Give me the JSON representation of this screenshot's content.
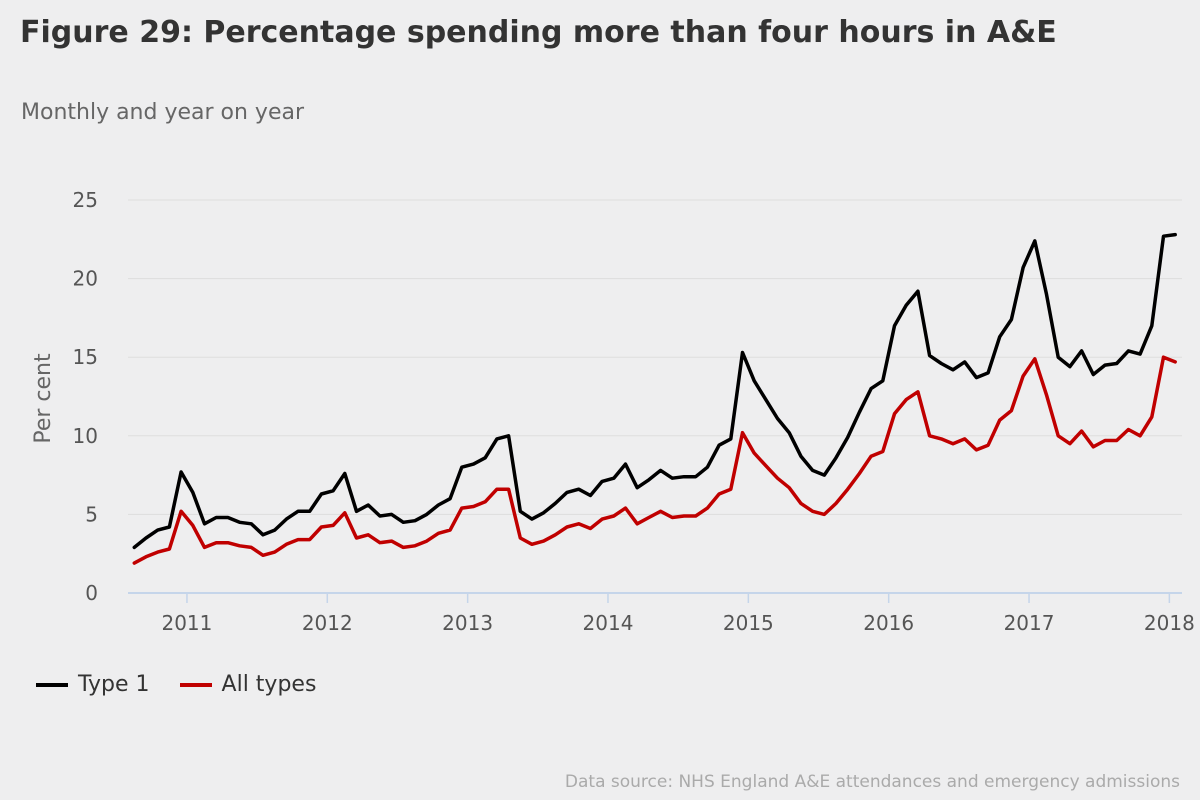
{
  "header": {
    "title": "Figure 29: Percentage spending more than four hours in A&E",
    "subtitle": "Monthly and year on year"
  },
  "footer": {
    "source": "Data source: NHS England A&E attendances and emergency admissions"
  },
  "colors": {
    "type1": "#000000",
    "all_types": "#c00000",
    "grid": "#dddddd",
    "axis": "#c5d5ea"
  },
  "chart_data": {
    "type": "line",
    "title": "Figure 29: Percentage spending more than four hours in A&E",
    "subtitle": "Monthly and year on year",
    "xlabel": "",
    "ylabel": "Per cent",
    "ylim": [
      0,
      25
    ],
    "yticks": [
      0,
      5,
      10,
      15,
      20,
      25
    ],
    "xlim": [
      2010.58,
      2018.09
    ],
    "xticks": [
      {
        "value": 2011.0,
        "label": "2011"
      },
      {
        "value": 2012.0,
        "label": "2012"
      },
      {
        "value": 2013.0,
        "label": "2013"
      },
      {
        "value": 2014.0,
        "label": "2014"
      },
      {
        "value": 2015.0,
        "label": "2015"
      },
      {
        "value": 2016.0,
        "label": "2016"
      },
      {
        "value": 2017.0,
        "label": "2017"
      },
      {
        "value": 2018.0,
        "label": "2018"
      }
    ],
    "grid": true,
    "legend_position": "bottom-left",
    "x_start": 2010.625,
    "x_step": 0.08333,
    "series": [
      {
        "name": "Type 1",
        "color": "#000000",
        "values": [
          2.9,
          3.5,
          4.0,
          4.2,
          7.7,
          6.4,
          4.4,
          4.8,
          4.8,
          4.5,
          4.4,
          3.7,
          4.0,
          4.7,
          5.2,
          5.2,
          6.3,
          6.5,
          7.6,
          5.2,
          5.6,
          4.9,
          5.0,
          4.5,
          4.6,
          5.0,
          5.6,
          6.0,
          8.0,
          8.2,
          8.6,
          9.8,
          10.0,
          5.2,
          4.7,
          5.1,
          5.7,
          6.4,
          6.6,
          6.2,
          7.1,
          7.3,
          8.2,
          6.7,
          7.2,
          7.8,
          7.3,
          7.4,
          7.4,
          8.0,
          9.4,
          9.8,
          15.3,
          13.5,
          12.3,
          11.1,
          10.2,
          8.7,
          7.8,
          7.5,
          8.6,
          9.9,
          11.5,
          13.0,
          13.5,
          17.0,
          18.3,
          19.2,
          15.1,
          14.6,
          14.2,
          14.7,
          13.7,
          14.0,
          16.3,
          17.4,
          20.7,
          22.4,
          19.0,
          15.0,
          14.4,
          15.4,
          13.9,
          14.5,
          14.6,
          15.4,
          15.2,
          17.0,
          22.7,
          22.8
        ]
      },
      {
        "name": "All types",
        "color": "#c00000",
        "values": [
          1.9,
          2.3,
          2.6,
          2.8,
          5.2,
          4.3,
          2.9,
          3.2,
          3.2,
          3.0,
          2.9,
          2.4,
          2.6,
          3.1,
          3.4,
          3.4,
          4.2,
          4.3,
          5.1,
          3.5,
          3.7,
          3.2,
          3.3,
          2.9,
          3.0,
          3.3,
          3.8,
          4.0,
          5.4,
          5.5,
          5.8,
          6.6,
          6.6,
          3.5,
          3.1,
          3.3,
          3.7,
          4.2,
          4.4,
          4.1,
          4.7,
          4.9,
          5.4,
          4.4,
          4.8,
          5.2,
          4.8,
          4.9,
          4.9,
          5.4,
          6.3,
          6.6,
          10.2,
          8.9,
          8.1,
          7.3,
          6.7,
          5.7,
          5.2,
          5.0,
          5.7,
          6.6,
          7.6,
          8.7,
          9.0,
          11.4,
          12.3,
          12.8,
          10.0,
          9.8,
          9.5,
          9.8,
          9.1,
          9.4,
          11.0,
          11.6,
          13.8,
          14.9,
          12.6,
          10.0,
          9.5,
          10.3,
          9.3,
          9.7,
          9.7,
          10.4,
          10.0,
          11.2,
          15.0,
          14.7
        ]
      }
    ]
  }
}
